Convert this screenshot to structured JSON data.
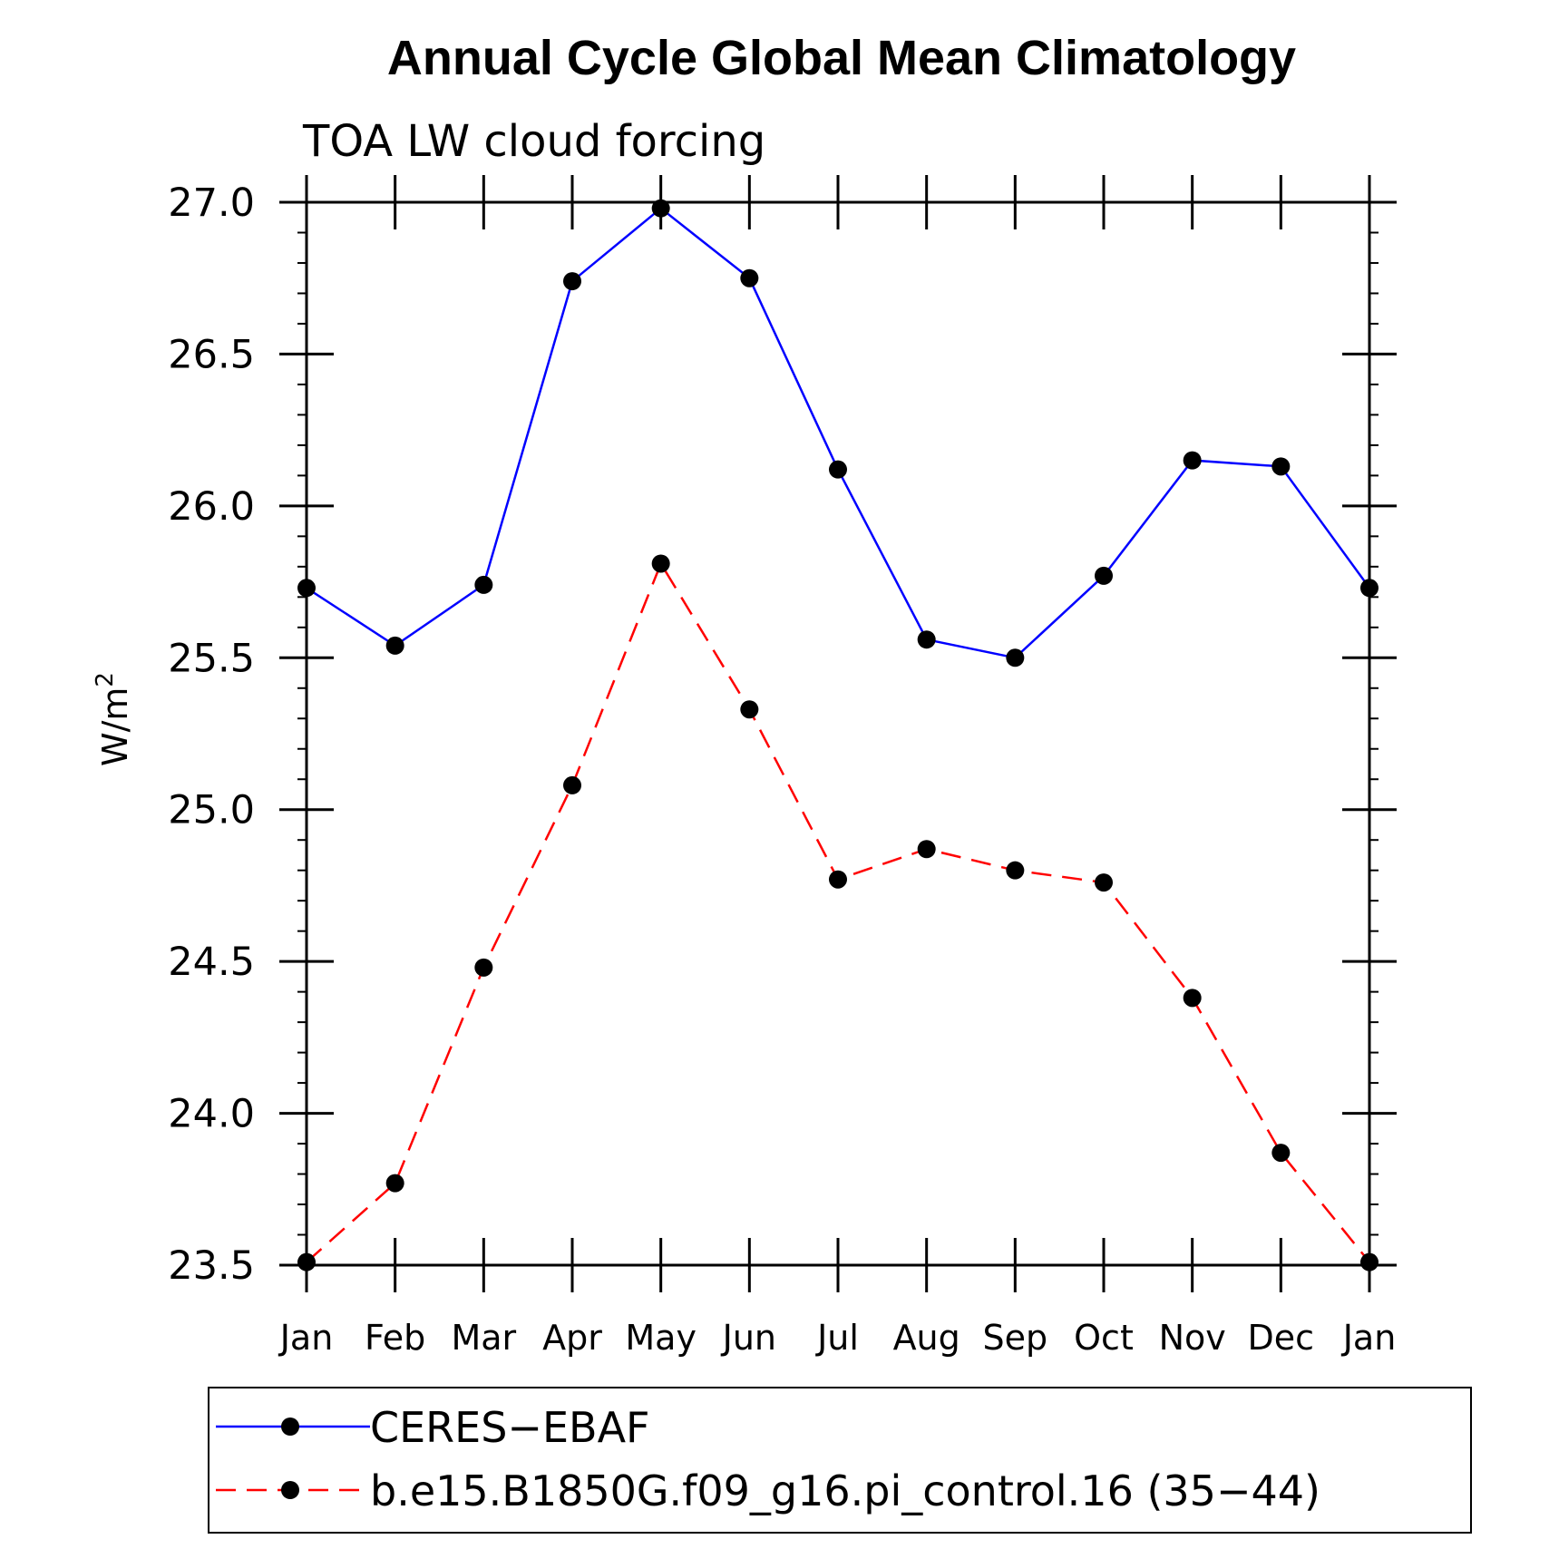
{
  "chart_data": {
    "type": "line",
    "title": "Annual Cycle Global Mean Climatology",
    "subtitle": "TOA LW cloud forcing",
    "xlabel": "",
    "ylabel": "W/m",
    "ylabel_superscript": "2",
    "ylim": [
      23.5,
      27.0
    ],
    "yticks": [
      "23.5",
      "24.0",
      "24.5",
      "25.0",
      "25.5",
      "26.0",
      "26.5",
      "27.0"
    ],
    "categories": [
      "Jan",
      "Feb",
      "Mar",
      "Apr",
      "May",
      "Jun",
      "Jul",
      "Aug",
      "Sep",
      "Oct",
      "Nov",
      "Dec",
      "Jan"
    ],
    "series": [
      {
        "name": "CERES−EBAF",
        "color": "#0000ff",
        "dash": "solid",
        "values": [
          25.73,
          25.54,
          25.74,
          26.74,
          26.98,
          26.75,
          26.12,
          25.56,
          25.5,
          25.77,
          26.15,
          26.13,
          25.73
        ]
      },
      {
        "name": "b.e15.B1850G.f09_g16.pi_control.16 (35−44)",
        "color": "#ff0000",
        "dash": "dashed",
        "values": [
          23.51,
          23.77,
          24.48,
          25.08,
          25.81,
          25.33,
          24.77,
          24.87,
          24.8,
          24.76,
          24.38,
          23.87,
          23.51
        ]
      }
    ],
    "legend_position": "bottom"
  }
}
